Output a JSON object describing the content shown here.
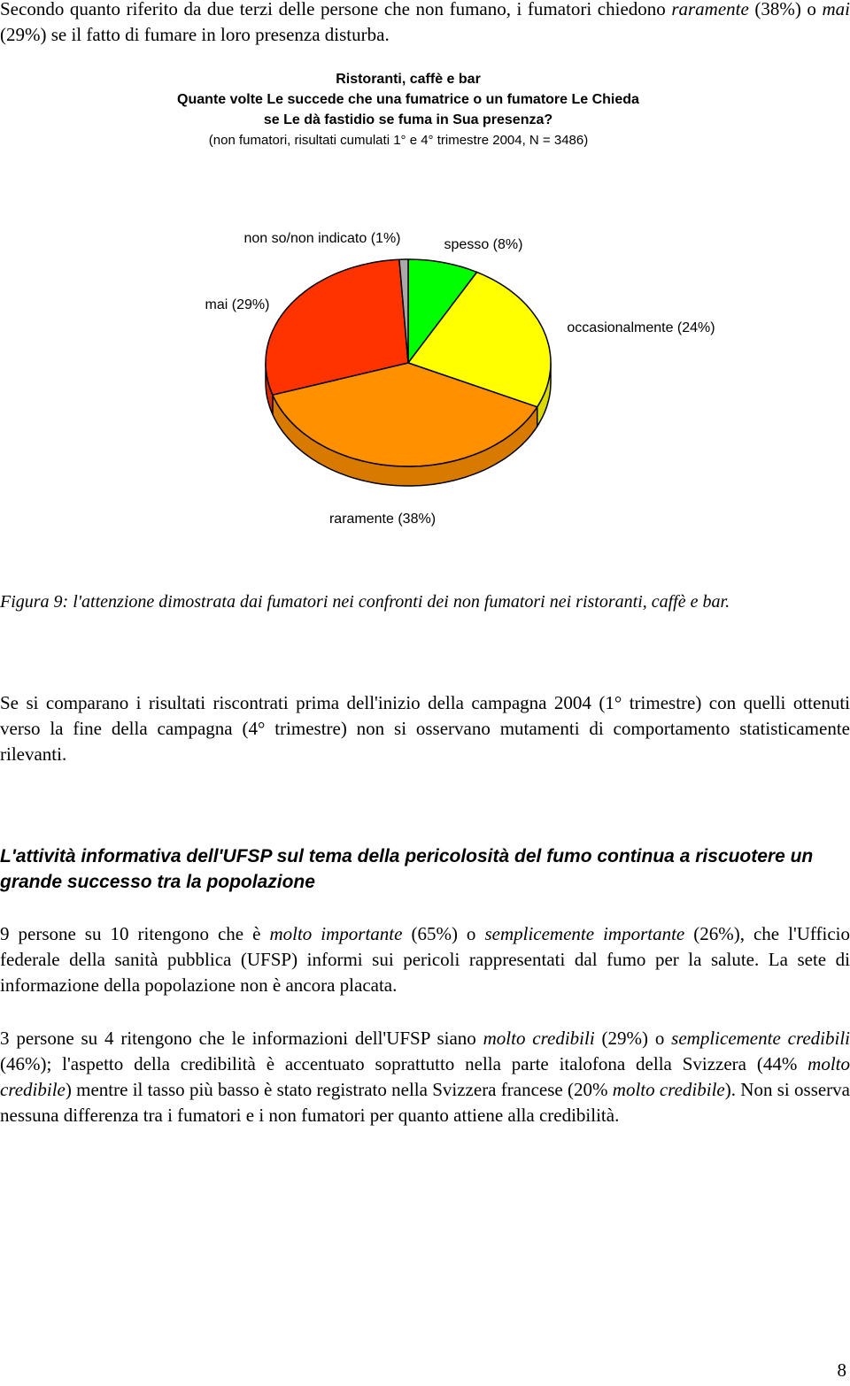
{
  "intro": [
    "Secondo quanto riferito da due terzi delle persone che non fumano, i fumatori chiedono ",
    "raramente",
    " (38%) o ",
    "mai",
    " (29%) se il fatto di fumare in loro presenza disturba."
  ],
  "chart_data": {
    "type": "pie",
    "title": [
      "Ristoranti, caffè e bar",
      "Quante volte Le succede che una fumatrice o un fumatore Le Chieda",
      "se Le dà fastidio se fuma in Sua presenza?"
    ],
    "subtitle": "(non fumatori, risultati cumulati 1° e 4° trimestre 2004, N = 3486)",
    "categories": [
      "spesso (8%)",
      "occasionalmente (24%)",
      "raramente (38%)",
      "mai (29%)",
      "non so/non indicato (1%)"
    ],
    "values": [
      8,
      24,
      38,
      29,
      1
    ],
    "colors": [
      "#00ff00",
      "#ffff00",
      "#ff9000",
      "#ff3300",
      "#aaaaaa"
    ]
  },
  "caption": "Figura 9: l'attenzione dimostrata dai fumatori nei confronti dei non fumatori nei ristoranti, caffè e bar.",
  "paragraph_1": [
    "Se si comparano i risultati riscontrati prima dell'inizio della campagna 2004 (1° trimestre) con quelli ottenuti verso la fine della campagna (4° trimestre) non si osservano mutamenti di comportamento statisticamente rilevanti."
  ],
  "heading": "L'attività informativa dell'UFSP sul tema della pericolosità del fumo continua a riscuotere un grande successo tra la popolazione",
  "paragraph_2": [
    "9 persone su 10 ritengono che è ",
    "molto importante",
    " (65%) o ",
    "semplicemente importante",
    " (26%), che l'Ufficio federale della sanità pubblica (UFSP) informi sui pericoli rappresentati dal fumo per la salute. La sete di informazione della popolazione non è ancora placata."
  ],
  "paragraph_3": [
    "3 persone su 4 ritengono che le informazioni dell'UFSP siano ",
    "molto credibili",
    " (29%) o ",
    "semplicemente credibili",
    " (46%); l'aspetto della credibilità è accentuato soprattutto nella parte italofona della Svizzera (44% ",
    "molto credibile",
    ") mentre il tasso più basso è stato registrato nella Svizzera francese (20% ",
    "molto credibile",
    "). Non si osserva nessuna differenza tra i fumatori e i non fumatori per quanto attiene alla credibilità."
  ],
  "page_number": "8"
}
